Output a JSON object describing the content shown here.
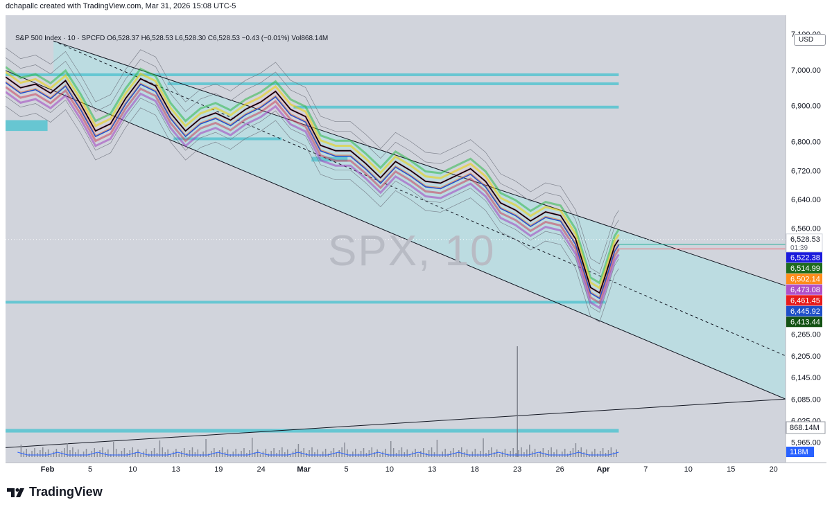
{
  "header": {
    "text": "dchapallc created with TradingView.com, Mar 31, 2026 15:08 UTC-5"
  },
  "legend": {
    "text": "S&P 500 Index · 10 · SPCFD  O6,528.37  H6,528.53  L6,528.30  C6,528.53  −0.43 (−0.01%)  Vol868.14M"
  },
  "currency": "USD",
  "watermark": "SPX, 10",
  "brand": "TradingView",
  "chart_data": {
    "type": "line",
    "symbol": "SPX",
    "interval": "10",
    "ylim": [
      5920,
      7140
    ],
    "y_ticks": [
      {
        "v": 7100,
        "label": "7,100.00"
      },
      {
        "v": 7000,
        "label": "7,000.00"
      },
      {
        "v": 6900,
        "label": "6,900.00"
      },
      {
        "v": 6800,
        "label": "6,800.00"
      },
      {
        "v": 6720,
        "label": "6,720.00"
      },
      {
        "v": 6640,
        "label": "6,640.00"
      },
      {
        "v": 6560,
        "label": "6,560.00"
      },
      {
        "v": 6265,
        "label": "6,265.00"
      },
      {
        "v": 6205,
        "label": "6,205.00"
      },
      {
        "v": 6145,
        "label": "6,145.00"
      },
      {
        "v": 6085,
        "label": "6,085.00"
      },
      {
        "v": 6025,
        "label": "6,025.00"
      },
      {
        "v": 5965,
        "label": "5,965.00"
      }
    ],
    "x_ticks": [
      {
        "i": 0.0,
        "label": "Feb",
        "bold": true
      },
      {
        "i": 0.71,
        "label": "5"
      },
      {
        "i": 1.42,
        "label": "10"
      },
      {
        "i": 2.14,
        "label": "13"
      },
      {
        "i": 2.85,
        "label": "19"
      },
      {
        "i": 3.56,
        "label": "24"
      },
      {
        "i": 4.27,
        "label": "Mar",
        "bold": true
      },
      {
        "i": 4.98,
        "label": "5"
      },
      {
        "i": 5.7,
        "label": "10"
      },
      {
        "i": 6.41,
        "label": "13"
      },
      {
        "i": 7.12,
        "label": "18"
      },
      {
        "i": 7.83,
        "label": "23"
      },
      {
        "i": 8.54,
        "label": "26"
      },
      {
        "i": 9.26,
        "label": "Apr",
        "bold": true
      },
      {
        "i": 9.97,
        "label": "7"
      },
      {
        "i": 10.68,
        "label": "10"
      },
      {
        "i": 11.39,
        "label": "15"
      },
      {
        "i": 12.1,
        "label": "20"
      }
    ],
    "x_range": [
      -0.7,
      12.3
    ],
    "price_series": [
      [
        -0.7,
        6980
      ],
      [
        -0.45,
        6950
      ],
      [
        -0.2,
        6960
      ],
      [
        0.05,
        6935
      ],
      [
        0.3,
        6970
      ],
      [
        0.55,
        6905
      ],
      [
        0.8,
        6830
      ],
      [
        1.05,
        6850
      ],
      [
        1.3,
        6920
      ],
      [
        1.55,
        6975
      ],
      [
        1.8,
        6955
      ],
      [
        2.05,
        6880
      ],
      [
        2.3,
        6830
      ],
      [
        2.55,
        6865
      ],
      [
        2.8,
        6880
      ],
      [
        3.05,
        6860
      ],
      [
        3.3,
        6890
      ],
      [
        3.55,
        6910
      ],
      [
        3.8,
        6940
      ],
      [
        4.05,
        6890
      ],
      [
        4.3,
        6870
      ],
      [
        4.55,
        6790
      ],
      [
        4.8,
        6775
      ],
      [
        5.05,
        6775
      ],
      [
        5.3,
        6740
      ],
      [
        5.55,
        6700
      ],
      [
        5.8,
        6745
      ],
      [
        6.05,
        6720
      ],
      [
        6.3,
        6690
      ],
      [
        6.55,
        6685
      ],
      [
        6.8,
        6705
      ],
      [
        7.05,
        6725
      ],
      [
        7.3,
        6690
      ],
      [
        7.55,
        6630
      ],
      [
        7.8,
        6610
      ],
      [
        8.05,
        6580
      ],
      [
        8.3,
        6605
      ],
      [
        8.55,
        6595
      ],
      [
        8.8,
        6530
      ],
      [
        9.05,
        6395
      ],
      [
        9.2,
        6380
      ],
      [
        9.3,
        6430
      ],
      [
        9.45,
        6510
      ],
      [
        9.52,
        6528.53
      ]
    ],
    "channel": {
      "upper": [
        [
          0.1,
          7080
        ],
        [
          9.52,
          6556
        ],
        [
          12.3,
          6400
        ]
      ],
      "lower": [
        [
          -0.7,
          6998
        ],
        [
          12.3,
          6085
        ]
      ],
      "mid_dashed": [
        [
          0.1,
          7080
        ],
        [
          12.3,
          6205
        ]
      ]
    },
    "trend_line": [
      [
        -0.7,
        5950
      ],
      [
        12.3,
        6085
      ]
    ],
    "zones": [
      {
        "y_top": 6990,
        "y_bot": 6985,
        "x0": -0.7,
        "x1": 9.52
      },
      {
        "y_top": 6965,
        "y_bot": 6960,
        "x0": 2.0,
        "x1": 9.52
      },
      {
        "y_top": 6900,
        "y_bot": 6893,
        "x0": 4.1,
        "x1": 9.52
      },
      {
        "y_top": 6860,
        "y_bot": 6830,
        "x0": -0.7,
        "x1": 0.0
      },
      {
        "y_top": 6812,
        "y_bot": 6805,
        "x0": 2.1,
        "x1": 3.9
      },
      {
        "y_top": 6758,
        "y_bot": 6745,
        "x0": 4.4,
        "x1": 5.0
      },
      {
        "y_top": 6358,
        "y_bot": 6352,
        "x0": -0.7,
        "x1": 9.3
      },
      {
        "y_top": 6002,
        "y_bot": 5992,
        "x0": -0.7,
        "x1": 9.52
      }
    ],
    "h_levels": [
      {
        "y": 6514.99,
        "color": "#22ab94",
        "x0": 9.5,
        "x1": 12.3
      },
      {
        "y": 6502.14,
        "color": "#f7525f",
        "x0": 9.5,
        "x1": 12.3
      }
    ],
    "price_labels": [
      {
        "value": 6528.53,
        "label": "6,528.53",
        "sub": "01:39",
        "bg": "#ffffff",
        "fg": "#131722"
      },
      {
        "value": 6522.38,
        "label": "6,522.38",
        "bg": "#1c1cdc",
        "fg": "#ffffff"
      },
      {
        "value": 6514.99,
        "label": "6,514.99",
        "bg": "#1e6b1e",
        "fg": "#ffffff"
      },
      {
        "value": 6502.14,
        "label": "6,502.14",
        "bg": "#ff8c1a",
        "fg": "#ffffff"
      },
      {
        "value": 6473.08,
        "label": "6,473.08",
        "bg": "#b050c8",
        "fg": "#ffffff"
      },
      {
        "value": 6461.45,
        "label": "6,461.45",
        "bg": "#e81c1c",
        "fg": "#ffffff"
      },
      {
        "value": 6445.92,
        "label": "6,445.92",
        "bg": "#1f4fc8",
        "fg": "#ffffff"
      },
      {
        "value": 6413.44,
        "label": "6,413.44",
        "bg": "#145214",
        "fg": "#ffffff"
      }
    ],
    "volume": {
      "last": "868.14M",
      "avg": "118M",
      "spike_x": 7.83
    }
  }
}
